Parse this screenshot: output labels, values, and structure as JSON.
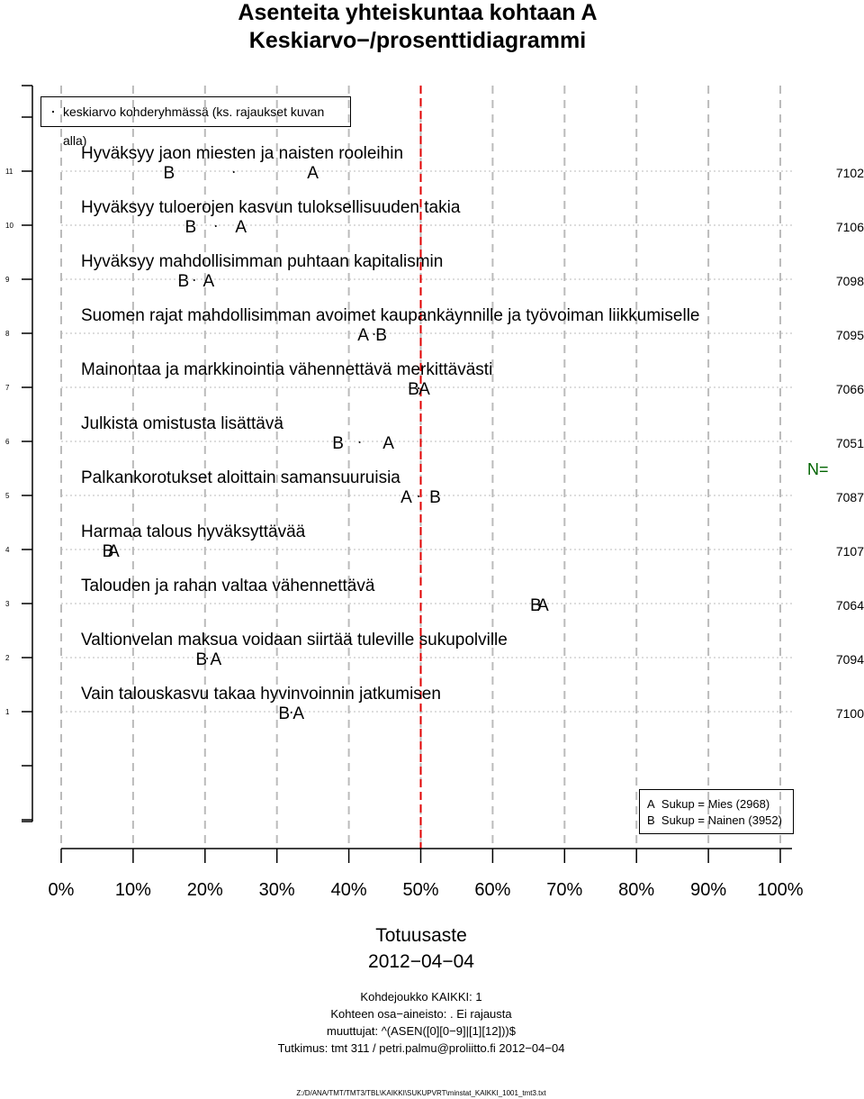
{
  "title": "Asenteita yhteiskuntaa kohtaan A",
  "subtitle": "Keskiarvo−/prosenttidiagrammi",
  "legend_top": "keskiarvo kohderyhmässä (ks. rajaukset kuvan alla)",
  "legend_groups": [
    {
      "marker": "A",
      "label": "Sukup = Mies (2968)"
    },
    {
      "marker": "B",
      "label": "Sukup = Nainen (3952)"
    }
  ],
  "n_label": "N=",
  "xlabel": "Totuusaste",
  "date": "2012−04−04",
  "footer": [
    "Kohdejoukko KAIKKI: 1",
    "Kohteen osa−aineisto: . Ei rajausta",
    "muuttujat: ^(ASEN([0][0−9]|[1][12]))$",
    "Tutkimus: tmt 311 / petri.palmu@proliitto.fi 2012−04−04"
  ],
  "file_path": "Z:/D/ANA/TMT/TMT3/TBL\\KAIKKI\\SUKUPVRT\\minstat_KAIKKI_1001_tmt3.txt",
  "colors": {
    "reference_line": "#e00000",
    "n_label": "#006400",
    "grid": "#bbbbbb"
  },
  "chart_data": {
    "type": "scatter",
    "xlabel": "Totuusaste",
    "x_ticks": [
      "0%",
      "10%",
      "20%",
      "30%",
      "40%",
      "50%",
      "60%",
      "70%",
      "80%",
      "90%",
      "100%"
    ],
    "xlim": [
      0,
      100
    ],
    "reference_line": 50,
    "series": [
      {
        "name": "Sukup = Mies (2968)",
        "marker": "A"
      },
      {
        "name": "Sukup = Nainen (3952)",
        "marker": "B"
      }
    ],
    "items": [
      {
        "row": 11,
        "label": "Hyväksyy jaon miesten ja naisten rooleihin",
        "A": 35,
        "B": 15,
        "mean": 24,
        "n": "7102"
      },
      {
        "row": 10,
        "label": "Hyväksyy tuloerojen kasvun tuloksellisuuden takia",
        "A": 25,
        "B": 18,
        "mean": 21.5,
        "n": "7106"
      },
      {
        "row": 9,
        "label": "Hyväksyy mahdollisimman puhtaan kapitalismin",
        "A": 20.5,
        "B": 17,
        "mean": 18.5,
        "n": "7098"
      },
      {
        "row": 8,
        "label": "Suomen rajat mahdollisimman avoimet kaupankäynnille ja työvoiman liikkumiselle",
        "A": 42,
        "B": 44.5,
        "mean": 43.5,
        "n": "7095"
      },
      {
        "row": 7,
        "label": "Mainontaa ja markkinointia vähennettävä merkittävästi",
        "A": 50.5,
        "B": 49,
        "mean": 49.7,
        "n": "7066"
      },
      {
        "row": 6,
        "label": "Julkista omistusta lisättävä",
        "A": 45.5,
        "B": 38.5,
        "mean": 41.5,
        "n": "7051"
      },
      {
        "row": 5,
        "label": "Palkankorotukset aloittain samansuuruisia",
        "A": 48,
        "B": 52,
        "mean": 49.7,
        "n": "7087"
      },
      {
        "row": 4,
        "label": "Harmaa talous hyväksyttävää",
        "A": 7.3,
        "B": 6.5,
        "mean": 6.8,
        "n": "7107"
      },
      {
        "row": 3,
        "label": "Talouden ja rahan valtaa vähennettävä",
        "A": 67,
        "B": 66,
        "mean": 66.5,
        "n": "7064"
      },
      {
        "row": 2,
        "label": "Valtionvelan maksua voidaan siirtää tuleville sukupolville",
        "A": 21.5,
        "B": 19.5,
        "mean": 20.3,
        "n": "7094"
      },
      {
        "row": 1,
        "label": "Vain talouskasvu takaa hyvinvoinnin jatkumisen",
        "A": 33,
        "B": 31,
        "mean": 32,
        "n": "7100"
      }
    ]
  }
}
